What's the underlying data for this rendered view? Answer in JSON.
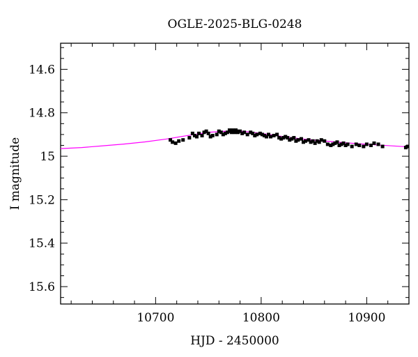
{
  "chart_data": {
    "type": "scatter",
    "title": "OGLE-2025-BLG-0248",
    "xlabel": "HJD - 2450000",
    "ylabel": "I magnitude",
    "xlim": [
      10610,
      10940
    ],
    "ylim": [
      15.68,
      14.48
    ],
    "y_inverted": true,
    "x_ticks": [
      10700,
      10800,
      10900
    ],
    "x_tick_labels": [
      "10700",
      "10800",
      "10900"
    ],
    "y_ticks": [
      14.6,
      14.8,
      15,
      15.2,
      15.4,
      15.6
    ],
    "y_tick_labels": [
      "14.6",
      "14.8",
      "15",
      "15.2",
      "15.4",
      "15.6"
    ],
    "grid": false,
    "series": [
      {
        "kind": "points",
        "color": "#000000",
        "error": 0.007,
        "x": [
          10714,
          10716,
          10719,
          10722,
          10726,
          10732,
          10735,
          10737,
          10739,
          10741,
          10744,
          10746,
          10748,
          10750,
          10752,
          10754,
          10758,
          10760,
          10762,
          10764,
          10766,
          10768,
          10770,
          10771,
          10772,
          10773,
          10774,
          10775,
          10776,
          10777,
          10778,
          10780,
          10782,
          10784,
          10787,
          10790,
          10792,
          10794,
          10796,
          10799,
          10801,
          10803,
          10805,
          10807,
          10809,
          10812,
          10815,
          10817,
          10819,
          10821,
          10823,
          10825,
          10827,
          10829,
          10831,
          10833,
          10835,
          10838,
          10840,
          10842,
          10845,
          10847,
          10849,
          10851,
          10853,
          10855,
          10857,
          10860,
          10863,
          10866,
          10868,
          10870,
          10872,
          10874,
          10876,
          10878,
          10880,
          10882,
          10886,
          10890,
          10893,
          10897,
          10900,
          10904,
          10907,
          10911,
          10915,
          10937,
          10939
        ],
        "y": [
          14.925,
          14.935,
          14.94,
          14.93,
          14.925,
          14.915,
          14.895,
          14.905,
          14.91,
          14.895,
          14.905,
          14.89,
          14.885,
          14.895,
          14.91,
          14.905,
          14.9,
          14.885,
          14.89,
          14.9,
          14.895,
          14.89,
          14.88,
          14.885,
          14.89,
          14.88,
          14.885,
          14.89,
          14.88,
          14.885,
          14.89,
          14.885,
          14.895,
          14.89,
          14.9,
          14.89,
          14.895,
          14.905,
          14.9,
          14.895,
          14.9,
          14.905,
          14.91,
          14.9,
          14.91,
          14.905,
          14.9,
          14.915,
          14.92,
          14.915,
          14.91,
          14.915,
          14.925,
          14.92,
          14.915,
          14.93,
          14.925,
          14.92,
          14.935,
          14.93,
          14.925,
          14.935,
          14.93,
          14.94,
          14.93,
          14.935,
          14.925,
          14.93,
          14.945,
          14.95,
          14.945,
          14.94,
          14.935,
          14.95,
          14.945,
          14.94,
          14.95,
          14.945,
          14.955,
          14.945,
          14.95,
          14.955,
          14.945,
          14.95,
          14.94,
          14.945,
          14.955,
          14.96,
          14.955
        ]
      },
      {
        "kind": "model-line",
        "color": "#ff00ff",
        "x": [
          10610,
          10630,
          10650,
          10670,
          10690,
          10710,
          10730,
          10750,
          10765,
          10775,
          10785,
          10800,
          10820,
          10840,
          10860,
          10880,
          10900,
          10920,
          10940
        ],
        "y": [
          14.965,
          14.96,
          14.952,
          14.944,
          14.934,
          14.921,
          14.905,
          14.89,
          14.885,
          14.883,
          14.886,
          14.895,
          14.909,
          14.921,
          14.93,
          14.938,
          14.945,
          14.951,
          14.957
        ]
      }
    ]
  }
}
